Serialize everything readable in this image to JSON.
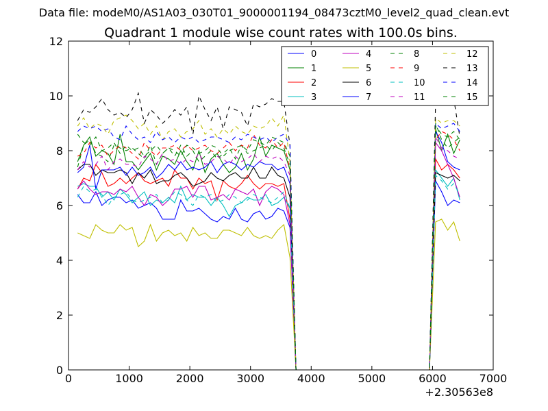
{
  "suptitle": "Data file: modeM0/AS1A03_030T01_9000001194_08473cztM0_level2_quad_clean.evt",
  "chart_data": {
    "type": "line",
    "title": "Quadrant 1 module wise count rates with 100.0s bins.",
    "x_offset_label": "+2.30563e8",
    "xlim": [
      0,
      7000
    ],
    "ylim": [
      0,
      12
    ],
    "xticks": [
      0,
      1000,
      2000,
      3000,
      4000,
      5000,
      6000,
      7000
    ],
    "yticks": [
      0,
      2,
      4,
      6,
      8,
      10,
      12
    ],
    "legend_position": "top-right",
    "x": [
      150,
      250,
      350,
      450,
      550,
      650,
      750,
      850,
      950,
      1050,
      1150,
      1250,
      1350,
      1450,
      1550,
      1650,
      1750,
      1850,
      1950,
      2050,
      2150,
      2250,
      2350,
      2450,
      2550,
      2650,
      2750,
      2850,
      2950,
      3050,
      3150,
      3250,
      3350,
      3450,
      3550,
      3650,
      3750,
      5850,
      5950,
      6050,
      6150,
      6250,
      6350,
      6450
    ],
    "series": [
      {
        "name": "0",
        "color": "#0000ff",
        "dash": false,
        "values": [
          6.4,
          6.1,
          6.1,
          6.5,
          6.0,
          6.2,
          6.3,
          6.3,
          6.1,
          6.2,
          5.9,
          6.0,
          6.1,
          5.9,
          5.5,
          5.5,
          5.5,
          6.2,
          5.8,
          5.8,
          5.9,
          5.7,
          5.5,
          5.4,
          5.6,
          5.5,
          5.9,
          5.5,
          5.4,
          5.7,
          5.8,
          5.5,
          5.6,
          5.9,
          5.8,
          5.2,
          0,
          0,
          0,
          6.9,
          6.5,
          6.0,
          6.2,
          6.1
        ]
      },
      {
        "name": "1",
        "color": "#008000",
        "dash": false,
        "values": [
          7.6,
          8.2,
          8.5,
          7.8,
          8.0,
          7.9,
          7.5,
          8.6,
          7.6,
          7.6,
          7.3,
          7.6,
          7.9,
          7.3,
          7.8,
          7.7,
          7.5,
          8.0,
          7.6,
          7.3,
          8.0,
          7.2,
          7.7,
          7.9,
          7.5,
          7.2,
          7.4,
          7.9,
          7.3,
          7.7,
          8.5,
          7.8,
          8.2,
          8.1,
          8.0,
          7.3,
          0,
          0,
          0,
          8.8,
          8.0,
          8.6,
          7.9,
          8.4
        ]
      },
      {
        "name": "2",
        "color": "#ff0000",
        "dash": false,
        "values": [
          6.6,
          7.0,
          6.9,
          7.5,
          7.2,
          6.7,
          6.8,
          7.0,
          6.8,
          7.0,
          7.2,
          6.9,
          6.8,
          6.9,
          7.0,
          6.7,
          7.3,
          7.0,
          7.0,
          6.6,
          7.0,
          6.8,
          6.9,
          6.2,
          6.9,
          6.7,
          6.6,
          6.8,
          7.1,
          6.8,
          6.6,
          6.8,
          6.8,
          6.7,
          6.8,
          5.5,
          0,
          0,
          0,
          7.7,
          7.3,
          7.5,
          7.3,
          7.0
        ]
      },
      {
        "name": "3",
        "color": "#00bfbf",
        "dash": false,
        "values": [
          6.7,
          6.8,
          6.7,
          6.7,
          6.3,
          6.5,
          6.2,
          6.6,
          6.4,
          6.1,
          6.3,
          6.5,
          6.0,
          6.2,
          6.1,
          6.3,
          6.1,
          6.7,
          6.2,
          6.4,
          6.3,
          6.3,
          6.0,
          6.3,
          6.0,
          5.6,
          6.0,
          6.1,
          6.3,
          6.2,
          6.2,
          6.4,
          6.0,
          6.1,
          6.3,
          5.9,
          0,
          0,
          0,
          7.3,
          7.0,
          6.7,
          7.0,
          6.2
        ]
      },
      {
        "name": "4",
        "color": "#bf00bf",
        "dash": false,
        "values": [
          6.6,
          6.9,
          6.6,
          6.4,
          6.5,
          6.5,
          6.4,
          6.6,
          6.5,
          6.7,
          6.3,
          6.0,
          6.4,
          6.3,
          6.0,
          6.2,
          6.6,
          6.6,
          6.7,
          6.3,
          6.7,
          6.7,
          6.2,
          6.3,
          6.4,
          6.2,
          6.6,
          6.5,
          6.4,
          6.6,
          6.0,
          6.5,
          6.7,
          6.6,
          6.4,
          5.3,
          0,
          0,
          0,
          8.3,
          8.0,
          7.5,
          7.0,
          6.3
        ]
      },
      {
        "name": "5",
        "color": "#bfbf00",
        "dash": false,
        "values": [
          5.0,
          4.9,
          4.8,
          5.3,
          5.1,
          5.0,
          5.0,
          5.3,
          5.1,
          5.2,
          4.5,
          4.7,
          5.3,
          4.7,
          5.0,
          5.1,
          4.9,
          5.0,
          4.7,
          5.2,
          4.9,
          5.0,
          4.8,
          4.8,
          5.1,
          5.1,
          5.0,
          4.9,
          5.2,
          4.9,
          4.8,
          4.9,
          4.8,
          5.1,
          5.3,
          4.1,
          0,
          0,
          0,
          5.4,
          5.5,
          5.1,
          5.4,
          4.7
        ]
      },
      {
        "name": "6",
        "color": "#000000",
        "dash": false,
        "values": [
          7.3,
          7.5,
          7.5,
          7.1,
          7.3,
          7.2,
          7.2,
          7.3,
          7.2,
          6.8,
          7.2,
          7.0,
          7.3,
          6.8,
          6.9,
          6.9,
          7.1,
          7.2,
          7.0,
          6.7,
          6.8,
          6.9,
          7.2,
          7.0,
          6.9,
          7.1,
          7.2,
          7.0,
          7.0,
          7.4,
          7.0,
          7.0,
          7.4,
          7.1,
          7.0,
          6.3,
          0,
          0,
          0,
          7.2,
          7.1,
          7.0,
          7.1,
          6.9
        ]
      },
      {
        "name": "7",
        "color": "#0000ff",
        "dash": false,
        "values": [
          7.2,
          7.4,
          8.2,
          6.6,
          7.3,
          7.3,
          7.3,
          7.4,
          7.1,
          7.4,
          7.1,
          7.2,
          7.4,
          7.0,
          7.2,
          7.5,
          7.3,
          7.6,
          7.3,
          7.4,
          7.3,
          7.4,
          7.6,
          7.2,
          7.5,
          7.6,
          7.5,
          7.3,
          7.5,
          7.4,
          7.6,
          7.5,
          7.5,
          7.3,
          7.4,
          6.8,
          0,
          0,
          0,
          8.7,
          8.3,
          7.6,
          7.4,
          7.3
        ]
      },
      {
        "name": "8",
        "color": "#008000",
        "dash": true,
        "values": [
          7.4,
          8.2,
          8.4,
          7.9,
          7.8,
          7.6,
          8.2,
          8.1,
          8.0,
          8.1,
          7.9,
          7.7,
          8.2,
          7.5,
          7.9,
          8.1,
          7.8,
          8.2,
          7.8,
          8.0,
          7.6,
          7.8,
          8.0,
          7.7,
          7.9,
          8.1,
          7.7,
          8.2,
          7.9,
          8.0,
          8.1,
          8.2,
          8.0,
          8.3,
          8.1,
          7.5,
          0,
          0,
          0,
          9.0,
          8.4,
          8.1,
          8.3,
          8.5
        ]
      },
      {
        "name": "9",
        "color": "#ff0000",
        "dash": true,
        "values": [
          7.8,
          7.9,
          8.3,
          8.1,
          8.2,
          7.8,
          8.0,
          8.2,
          8.1,
          7.9,
          7.7,
          8.3,
          8.0,
          7.8,
          8.1,
          8.1,
          8.2,
          8.0,
          8.2,
          8.0,
          8.1,
          8.2,
          8.0,
          7.9,
          8.1,
          8.3,
          8.0,
          8.2,
          8.1,
          8.6,
          8.2,
          8.1,
          8.4,
          8.1,
          8.3,
          7.3,
          0,
          0,
          0,
          8.4,
          8.7,
          8.6,
          8.4,
          8.0
        ]
      },
      {
        "name": "10",
        "color": "#00bfbf",
        "dash": true,
        "values": [
          6.3,
          6.7,
          6.5,
          6.6,
          6.4,
          6.0,
          6.3,
          6.4,
          6.5,
          6.2,
          6.1,
          6.2,
          6.3,
          6.4,
          6.1,
          6.2,
          6.5,
          6.4,
          6.2,
          6.0,
          6.4,
          6.3,
          6.4,
          6.1,
          6.2,
          6.4,
          6.3,
          6.1,
          6.2,
          6.4,
          6.3,
          6.2,
          6.1,
          6.3,
          6.5,
          5.9,
          0,
          0,
          0,
          7.1,
          6.9,
          6.6,
          6.8,
          6.4
        ]
      },
      {
        "name": "11",
        "color": "#bf00bf",
        "dash": true,
        "values": [
          7.3,
          7.6,
          7.4,
          7.5,
          7.8,
          7.3,
          7.6,
          7.7,
          7.5,
          7.5,
          7.4,
          7.8,
          7.7,
          7.5,
          7.9,
          7.6,
          7.7,
          7.5,
          7.7,
          7.6,
          7.9,
          7.5,
          7.6,
          7.8,
          7.7,
          7.5,
          7.8,
          7.6,
          7.7,
          7.9,
          7.6,
          7.8,
          7.7,
          7.8,
          7.6,
          7.1,
          0,
          0,
          0,
          8.5,
          8.1,
          8.0,
          7.8,
          7.7
        ]
      },
      {
        "name": "12",
        "color": "#bfbf00",
        "dash": true,
        "values": [
          8.9,
          9.2,
          8.8,
          9.0,
          8.9,
          8.6,
          9.1,
          9.2,
          9.3,
          9.1,
          8.8,
          9.0,
          8.6,
          8.9,
          8.4,
          8.7,
          8.8,
          8.5,
          8.7,
          8.8,
          9.1,
          8.6,
          8.8,
          8.5,
          8.8,
          8.6,
          8.9,
          8.7,
          8.6,
          8.9,
          8.8,
          8.9,
          9.2,
          8.9,
          9.3,
          7.6,
          0,
          0,
          0,
          9.2,
          9.0,
          9.1,
          9.1,
          8.9
        ]
      },
      {
        "name": "13",
        "color": "#000000",
        "dash": true,
        "values": [
          9.1,
          9.5,
          9.4,
          9.6,
          9.9,
          9.5,
          9.3,
          9.4,
          9.2,
          9.5,
          10.1,
          9.0,
          9.5,
          9.3,
          9.0,
          9.2,
          9.5,
          9.3,
          9.6,
          8.6,
          10.0,
          9.5,
          9.1,
          9.6,
          8.8,
          9.6,
          9.5,
          9.4,
          8.9,
          9.7,
          9.6,
          9.7,
          9.9,
          9.8,
          9.8,
          8.2,
          0,
          0,
          0,
          9.8,
          10.0,
          10.1,
          9.9,
          8.5
        ]
      },
      {
        "name": "14",
        "color": "#0000ff",
        "dash": true,
        "values": [
          8.7,
          8.9,
          8.8,
          8.9,
          8.7,
          8.8,
          8.5,
          8.4,
          8.9,
          8.6,
          8.4,
          8.5,
          8.3,
          8.7,
          8.4,
          8.5,
          8.3,
          8.5,
          8.4,
          8.5,
          8.3,
          8.4,
          8.5,
          8.5,
          8.4,
          8.3,
          8.5,
          8.4,
          8.6,
          8.5,
          8.4,
          8.5,
          8.3,
          8.5,
          8.6,
          8.2,
          0,
          0,
          0,
          9.0,
          8.8,
          8.9,
          9.0,
          8.7
        ]
      },
      {
        "name": "15",
        "color": "#008000",
        "dash": true,
        "values": [
          8.6,
          8.3,
          8.2,
          8.5,
          8.0,
          8.1,
          8.3,
          7.9,
          8.2,
          8.0,
          8.1,
          7.8,
          8.0,
          8.2,
          7.9,
          8.1,
          8.0,
          7.8,
          8.2,
          8.1,
          7.9,
          8.0,
          8.2,
          8.1,
          7.8,
          8.0,
          8.1,
          8.2,
          8.0,
          8.4,
          8.3,
          8.2,
          8.5,
          8.4,
          8.3,
          7.8,
          0,
          0,
          0,
          8.9,
          8.6,
          8.5,
          8.7,
          8.4
        ]
      }
    ]
  }
}
